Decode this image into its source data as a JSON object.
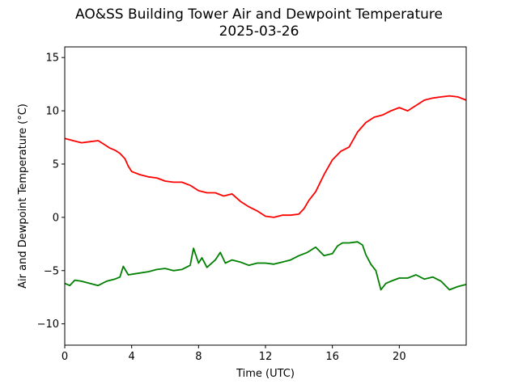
{
  "chart_data": {
    "type": "line",
    "title": "AO&SS Building Tower Air and Dewpoint Temperature",
    "subtitle": "2025-03-26",
    "xlabel": "Time (UTC)",
    "ylabel": "Air and Dewpoint Temperature (°C)",
    "xlim": [
      0,
      24
    ],
    "ylim": [
      -12,
      16
    ],
    "xticks": [
      0,
      4,
      8,
      12,
      16,
      20
    ],
    "yticks": [
      -10,
      -5,
      0,
      5,
      10,
      15
    ],
    "grid": false,
    "series": [
      {
        "color": "#ff0000",
        "x": [
          0,
          0.5,
          1,
          1.5,
          2,
          2.3,
          2.7,
          3,
          3.3,
          3.6,
          3.8,
          4,
          4.5,
          5,
          5.5,
          6,
          6.5,
          7,
          7.5,
          8,
          8.5,
          9,
          9.5,
          10,
          10.5,
          11,
          11.5,
          12,
          12.5,
          13,
          13.5,
          14,
          14.3,
          14.6,
          15,
          15.5,
          16,
          16.5,
          17,
          17.5,
          18,
          18.5,
          19,
          19.5,
          20,
          20.5,
          21,
          21.5,
          22,
          22.5,
          23,
          23.5,
          24
        ],
        "values": [
          7.4,
          7.2,
          7.0,
          7.1,
          7.2,
          6.9,
          6.5,
          6.3,
          6.0,
          5.5,
          4.8,
          4.3,
          4.0,
          3.8,
          3.7,
          3.4,
          3.3,
          3.3,
          3.0,
          2.5,
          2.3,
          2.3,
          2.0,
          2.2,
          1.5,
          1.0,
          0.6,
          0.1,
          0.0,
          0.2,
          0.2,
          0.3,
          0.8,
          1.6,
          2.4,
          4.0,
          5.4,
          6.2,
          6.6,
          8.0,
          8.9,
          9.4,
          9.6,
          10.0,
          10.3,
          10.0,
          10.5,
          11.0,
          11.2,
          11.3,
          11.4,
          11.3,
          11.0
        ]
      },
      {
        "color": "#008000",
        "x": [
          0,
          0.3,
          0.6,
          1,
          1.5,
          2,
          2.5,
          3,
          3.3,
          3.5,
          3.8,
          4.2,
          5,
          5.5,
          6,
          6.5,
          7,
          7.5,
          7.7,
          8,
          8.2,
          8.5,
          9,
          9.3,
          9.6,
          10,
          10.5,
          11,
          11.5,
          12,
          12.5,
          13,
          13.5,
          14,
          14.5,
          15,
          15.5,
          16,
          16.3,
          16.6,
          17,
          17.5,
          17.8,
          18,
          18.3,
          18.6,
          18.9,
          19.2,
          19.5,
          20,
          20.5,
          21,
          21.5,
          22,
          22.5,
          23,
          23.5,
          24
        ],
        "values": [
          -6.2,
          -6.4,
          -5.9,
          -6.0,
          -6.2,
          -6.4,
          -6.0,
          -5.8,
          -5.6,
          -4.6,
          -5.4,
          -5.3,
          -5.1,
          -4.9,
          -4.8,
          -5.0,
          -4.9,
          -4.5,
          -2.9,
          -4.3,
          -3.8,
          -4.7,
          -4.0,
          -3.3,
          -4.3,
          -4.0,
          -4.2,
          -4.5,
          -4.3,
          -4.3,
          -4.4,
          -4.2,
          -4.0,
          -3.6,
          -3.3,
          -2.8,
          -3.6,
          -3.4,
          -2.7,
          -2.4,
          -2.4,
          -2.3,
          -2.6,
          -3.5,
          -4.4,
          -5.0,
          -6.8,
          -6.2,
          -6.0,
          -5.7,
          -5.7,
          -5.4,
          -5.8,
          -5.6,
          -6.0,
          -6.8,
          -6.5,
          -6.3
        ]
      }
    ]
  }
}
